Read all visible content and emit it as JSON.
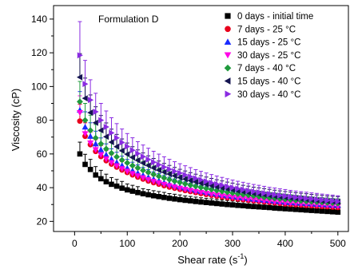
{
  "chart_data": {
    "type": "scatter",
    "title": "",
    "annotation": "Formulation D",
    "xlabel": "Shear rate (s",
    "xlabel_sup": "-1",
    "xlabel_suffix": ")",
    "ylabel": "Viscosity (cP)",
    "xlim": [
      -40,
      520
    ],
    "ylim": [
      14,
      148
    ],
    "xticks": [
      0,
      100,
      200,
      300,
      400,
      500
    ],
    "yticks": [
      20,
      40,
      60,
      80,
      100,
      120,
      140
    ],
    "grid": false,
    "legend_position": "top-right",
    "x": [
      10,
      20,
      30,
      40,
      50,
      60,
      70,
      80,
      90,
      100,
      110,
      120,
      130,
      140,
      150,
      160,
      170,
      180,
      190,
      200,
      210,
      220,
      230,
      240,
      250,
      260,
      270,
      280,
      290,
      300,
      310,
      320,
      330,
      340,
      350,
      360,
      370,
      380,
      390,
      400,
      410,
      420,
      430,
      440,
      450,
      460,
      470,
      480,
      490,
      500
    ],
    "series": [
      {
        "name": "0 days - initial time",
        "color": "#000000",
        "marker": "square",
        "values": [
          60,
          53.8,
          50.8,
          47.5,
          45.3,
          43.5,
          42,
          40.9,
          39.7,
          38.7,
          37.9,
          37.1,
          36.4,
          35.8,
          35.2,
          34.7,
          34.2,
          33.7,
          33.3,
          32.9,
          32.5,
          32.2,
          31.8,
          31.5,
          31.2,
          30.9,
          30.6,
          30.3,
          30,
          29.8,
          29.5,
          29.3,
          29,
          28.8,
          28.6,
          28.4,
          28.2,
          27.9,
          27.7,
          27.5,
          27.3,
          27.1,
          26.9,
          26.7,
          26.5,
          26.3,
          26.1,
          25.9,
          25.7,
          25.5
        ],
        "error": [
          7,
          6,
          6,
          5,
          5,
          4.5,
          4,
          4,
          4,
          3.5,
          3.5,
          3.5,
          3,
          3,
          3,
          3,
          3,
          2.8,
          2.8,
          2.8,
          2.6,
          2.6,
          2.6,
          2.5,
          2.5,
          2.5,
          2.4,
          2.4,
          2.4,
          2.3,
          2.3,
          2.3,
          2.2,
          2.2,
          2.2,
          2.1,
          2.1,
          2.1,
          2,
          2,
          2,
          2,
          1.9,
          1.9,
          1.9,
          1.9,
          1.8,
          1.8,
          1.8,
          1.8
        ]
      },
      {
        "name": "7 days - 25 °C",
        "color": "#e8001c",
        "marker": "circle",
        "values": [
          79.5,
          70.5,
          65.5,
          61.5,
          58.5,
          56,
          54,
          52.2,
          50.5,
          49,
          47.6,
          46.3,
          45.1,
          44,
          43,
          42.1,
          41.2,
          40.4,
          39.7,
          39,
          38.3,
          37.7,
          37.1,
          36.5,
          36,
          35.5,
          35,
          34.5,
          34.1,
          33.7,
          33.3,
          32.9,
          32.5,
          32.2,
          31.9,
          31.6,
          31.3,
          31,
          30.7,
          30.4,
          30.1,
          29.9,
          29.7,
          29.5,
          29.3,
          29.1,
          28.9,
          28.7,
          28.5,
          28.3
        ],
        "error": [
          10,
          8,
          7.5,
          7,
          6.5,
          6,
          5.5,
          5.5,
          5,
          5,
          4.8,
          4.6,
          4.4,
          4.2,
          4,
          4,
          3.8,
          3.8,
          3.6,
          3.6,
          3.5,
          3.4,
          3.4,
          3.3,
          3.2,
          3.2,
          3.1,
          3.1,
          3,
          3,
          2.9,
          2.9,
          2.8,
          2.8,
          2.8,
          2.7,
          2.7,
          2.7,
          2.6,
          2.6,
          2.6,
          2.5,
          2.5,
          2.5,
          2.5,
          2.4,
          2.4,
          2.4,
          2.4,
          2.3
        ]
      },
      {
        "name": "15 days - 25 °C",
        "color": "#1a2cff",
        "marker": "triangle-up",
        "values": [
          86,
          76,
          70.5,
          66,
          62.5,
          59.5,
          57,
          55,
          53.2,
          51.6,
          50.1,
          48.7,
          47.4,
          46.2,
          45.1,
          44.1,
          43.1,
          42.2,
          41.3,
          40.5,
          39.8,
          39.1,
          38.4,
          37.8,
          37.2,
          36.7,
          36.2,
          35.7,
          35.2,
          34.8,
          34.4,
          34,
          33.6,
          33.2,
          32.9,
          32.6,
          32.3,
          32,
          31.7,
          31.4,
          31.2,
          31,
          30.8,
          30.6,
          30.4,
          30.2,
          30,
          29.8,
          29.6,
          29.4
        ],
        "error": [
          11,
          9,
          8,
          7.5,
          7,
          6.5,
          6,
          6,
          5.5,
          5.2,
          5,
          4.8,
          4.6,
          4.5,
          4.3,
          4.2,
          4.1,
          4,
          3.9,
          3.8,
          3.7,
          3.6,
          3.5,
          3.5,
          3.4,
          3.3,
          3.3,
          3.2,
          3.2,
          3.1,
          3.1,
          3,
          3,
          2.9,
          2.9,
          2.9,
          2.8,
          2.8,
          2.8,
          2.7,
          2.7,
          2.7,
          2.6,
          2.6,
          2.6,
          2.6,
          2.5,
          2.5,
          2.5,
          2.5
        ]
      },
      {
        "name": "30 days - 25 °C",
        "color": "#ff00e6",
        "marker": "triangle-down",
        "values": [
          84.5,
          72,
          66.5,
          62.5,
          59.5,
          57,
          54.8,
          52.9,
          51.2,
          49.7,
          48.3,
          47,
          45.8,
          44.7,
          43.7,
          42.8,
          41.9,
          41.1,
          40.3,
          39.6,
          38.9,
          38.3,
          37.7,
          37.1,
          36.6,
          36.1,
          35.6,
          35.1,
          34.7,
          34.3,
          33.9,
          33.5,
          33.1,
          32.8,
          32.5,
          32.2,
          31.9,
          31.6,
          31.3,
          31,
          30.8,
          30.6,
          30.4,
          30.2,
          30,
          29.8,
          29.6,
          29.4,
          29.2,
          29
        ],
        "error": [
          10,
          8.5,
          7.5,
          7,
          6.5,
          6,
          5.8,
          5.5,
          5.2,
          5,
          4.8,
          4.6,
          4.4,
          4.3,
          4.2,
          4.1,
          4,
          3.9,
          3.8,
          3.7,
          3.6,
          3.5,
          3.5,
          3.4,
          3.3,
          3.3,
          3.2,
          3.2,
          3.1,
          3.1,
          3,
          3,
          2.9,
          2.9,
          2.9,
          2.8,
          2.8,
          2.8,
          2.7,
          2.7,
          2.7,
          2.6,
          2.6,
          2.6,
          2.6,
          2.5,
          2.5,
          2.5,
          2.5,
          2.4
        ]
      },
      {
        "name": "7 days - 40 °C",
        "color": "#1f9a3c",
        "marker": "diamond",
        "values": [
          91,
          80,
          74,
          69.5,
          66,
          63,
          60.5,
          58.3,
          56.4,
          54.7,
          53.1,
          51.7,
          50.3,
          49.1,
          47.9,
          46.8,
          45.8,
          44.8,
          43.9,
          43.1,
          42.3,
          41.5,
          40.8,
          40.1,
          39.5,
          38.9,
          38.3,
          37.8,
          37.3,
          36.8,
          36.3,
          35.9,
          35.5,
          35.1,
          34.7,
          34.3,
          34,
          33.7,
          33.4,
          33.1,
          32.8,
          32.5,
          32.2,
          31.9,
          31.7,
          31.5,
          31.3,
          31.1,
          30.9,
          30.7
        ],
        "error": [
          12,
          10,
          9,
          8,
          7.5,
          7,
          6.5,
          6.2,
          6,
          5.7,
          5.5,
          5.3,
          5.1,
          4.9,
          4.8,
          4.6,
          4.5,
          4.4,
          4.3,
          4.2,
          4.1,
          4,
          3.9,
          3.8,
          3.7,
          3.7,
          3.6,
          3.5,
          3.5,
          3.4,
          3.4,
          3.3,
          3.3,
          3.2,
          3.2,
          3.1,
          3.1,
          3.1,
          3,
          3,
          3,
          2.9,
          2.9,
          2.9,
          2.8,
          2.8,
          2.8,
          2.8,
          2.7,
          2.7
        ]
      },
      {
        "name": "15 days - 40 °C",
        "color": "#141450",
        "marker": "triangle-left",
        "values": [
          105.5,
          93,
          84.5,
          78.5,
          74,
          70.2,
          67,
          64.3,
          61.9,
          59.8,
          57.9,
          56.2,
          54.6,
          53.1,
          51.7,
          50.4,
          49.2,
          48.1,
          47,
          46,
          45.1,
          44.2,
          43.4,
          42.6,
          41.9,
          41.2,
          40.5,
          39.9,
          39.3,
          38.7,
          38.1,
          37.6,
          37.1,
          36.6,
          36.2,
          35.8,
          35.4,
          35,
          34.6,
          34.3,
          34,
          33.7,
          33.4,
          33.1,
          32.8,
          32.5,
          32.2,
          32,
          31.8,
          31.6
        ],
        "error": [
          14,
          12,
          10.5,
          9.5,
          8.8,
          8.2,
          7.7,
          7.3,
          7,
          6.7,
          6.4,
          6.2,
          6,
          5.8,
          5.6,
          5.4,
          5.2,
          5.1,
          5,
          4.9,
          4.8,
          4.7,
          4.6,
          4.5,
          4.4,
          4.3,
          4.2,
          4.1,
          4,
          4,
          3.9,
          3.8,
          3.8,
          3.7,
          3.7,
          3.6,
          3.6,
          3.5,
          3.5,
          3.4,
          3.4,
          3.3,
          3.3,
          3.3,
          3.2,
          3.2,
          3.2,
          3.1,
          3.1,
          3.1
        ]
      },
      {
        "name": "30 days - 40 °C",
        "color": "#8a2be2",
        "marker": "triangle-right",
        "values": [
          118.5,
          101.5,
          92,
          85,
          80,
          76,
          72.5,
          69.5,
          66.8,
          64.4,
          62.2,
          60.2,
          58.4,
          56.7,
          55.1,
          53.6,
          52.2,
          50.9,
          49.7,
          48.6,
          47.5,
          46.5,
          45.5,
          44.6,
          43.7,
          42.9,
          42.1,
          41.4,
          40.7,
          40,
          39.4,
          38.8,
          38.2,
          37.7,
          37.2,
          36.7,
          36.2,
          35.8,
          35.4,
          35,
          34.6,
          34.2,
          33.9,
          33.6,
          33.3,
          33,
          32.7,
          32.4,
          32.1,
          31.8
        ],
        "error": [
          20,
          14,
          12,
          11,
          10,
          9.5,
          9,
          8.5,
          8,
          7.7,
          7.4,
          7.1,
          6.9,
          6.7,
          6.5,
          6.3,
          6.1,
          5.9,
          5.7,
          5.6,
          5.5,
          5.4,
          5.2,
          5.1,
          5,
          4.9,
          4.8,
          4.7,
          4.6,
          4.5,
          4.4,
          4.4,
          4.3,
          4.2,
          4.2,
          4.1,
          4,
          4,
          3.9,
          3.9,
          3.8,
          3.8,
          3.7,
          3.7,
          3.6,
          3.6,
          3.5,
          3.5,
          3.5,
          3.4
        ]
      }
    ]
  }
}
